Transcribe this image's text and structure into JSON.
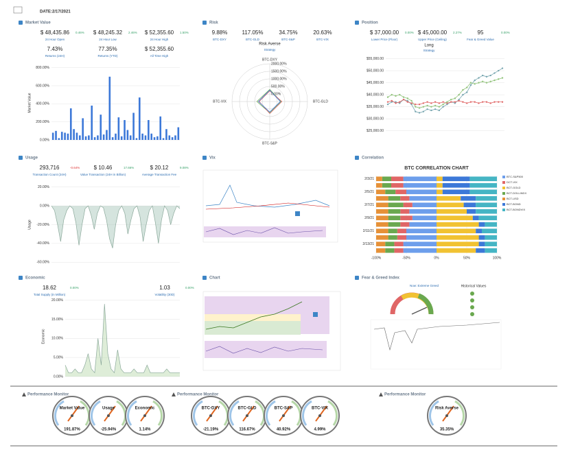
{
  "header": {
    "date_label": "DATE:",
    "date": "2/17/2021"
  },
  "panels": {
    "market_value": {
      "title": "Market Value",
      "kpis": [
        {
          "value": "$ 48,435.86",
          "change": "0.46%",
          "label": "24 Hour Open"
        },
        {
          "value": "$ 48,245.32",
          "change": "2.46%",
          "label": "24 Hour Low"
        },
        {
          "value": "$ 52,355.60",
          "change": "1.50%",
          "label": "24 Hour High"
        },
        {
          "value": "7.43%",
          "label": "Returns (24H)"
        },
        {
          "value": "77.35%",
          "label": "Returns (YTD)"
        },
        {
          "value": "$ 52,355.60",
          "label": "All Time High"
        }
      ],
      "chart": {
        "type": "bar",
        "y_label": "Market Value",
        "color": "#3c78d8",
        "ylim": [
          0,
          820
        ],
        "yticks": [
          {
            "value": 0,
            "label": "0.00%"
          },
          {
            "value": 200,
            "label": "200.00%"
          },
          {
            "value": 400,
            "label": "400.00%"
          },
          {
            "value": 600,
            "label": "600.00%"
          },
          {
            "value": 800,
            "label": "800.00%"
          }
        ],
        "values": [
          80,
          100,
          20,
          90,
          80,
          70,
          350,
          120,
          80,
          50,
          240,
          40,
          50,
          380,
          30,
          50,
          280,
          60,
          110,
          700,
          30,
          70,
          250,
          40,
          220,
          110,
          50,
          300,
          20,
          470,
          70,
          50,
          220,
          70,
          30,
          40,
          260,
          20,
          120,
          50,
          30,
          50,
          140
        ]
      }
    },
    "risk": {
      "title": "Risk",
      "kpis": [
        {
          "value": "9.88%",
          "label": "BTC-DXY"
        },
        {
          "value": "117.05%",
          "label": "BTC-GLD"
        },
        {
          "value": "34.75%",
          "label": "BTC-S&P"
        },
        {
          "value": "20.63%",
          "label": "BTC-VIX"
        }
      ],
      "strategy": {
        "value": "Risk Averse",
        "label": "Strategy"
      },
      "chart": {
        "type": "radar",
        "axes": [
          "BTC-DXY",
          "BTC-GLD",
          "BTC-S&P",
          "BTC-VIX"
        ],
        "rlim": [
          -500,
          2000
        ],
        "rticks": [
          {
            "value": 0,
            "label": "0.00%"
          },
          {
            "value": 500,
            "label": "500.00%"
          },
          {
            "value": 1000,
            "label": "1000.00%"
          },
          {
            "value": 1500,
            "label": "1500.00%"
          },
          {
            "value": 2000,
            "label": "2000.00%"
          }
        ],
        "series": [
          {
            "color": "#6aa84f",
            "values": [
              300,
              250,
              250,
              350
            ]
          },
          {
            "color": "#e06666",
            "values": [
              200,
              300,
              300,
              200
            ]
          },
          {
            "color": "#3c78d8",
            "values": [
              250,
              200,
              200,
              250
            ]
          }
        ]
      }
    },
    "position": {
      "title": "Position",
      "kpis": [
        {
          "value": "$ 37,000.00",
          "change": "0.00%",
          "label": "Lower Price (Floor)"
        },
        {
          "value": "$ 45,000.00",
          "change": "2.27%",
          "label": "Upper Price (Ceiling)"
        },
        {
          "value": "95",
          "change": "0.00%",
          "label": "Fear & Greed Value"
        }
      ],
      "strategy": {
        "value": "Long",
        "label": "Strategy"
      },
      "chart": {
        "type": "line",
        "ylim": [
          23500,
          56000
        ],
        "yticks": [
          {
            "value": 25000,
            "label": "$25,000.00"
          },
          {
            "value": 30000,
            "label": "$30,000.00"
          },
          {
            "value": 35000,
            "label": "$35,000.00"
          },
          {
            "value": 40000,
            "label": "$40,000.00"
          },
          {
            "value": 45000,
            "label": "$45,000.00"
          },
          {
            "value": 50000,
            "label": "$50,000.00"
          },
          {
            "value": 55000,
            "label": "$55,000.00"
          }
        ],
        "series": [
          {
            "color": "#76a5af",
            "values": [
              36000,
              37000,
              37000,
              36500,
              38000,
              37500,
              36000,
              33000,
              32500,
              33000,
              34000,
              33500,
              34000,
              33500,
              35000,
              36000,
              37000,
              36500,
              38000,
              40000,
              41000,
              44000,
              46000,
              47000,
              48000,
              47500,
              48000,
              49000,
              50000,
              51000
            ]
          },
          {
            "color": "#e06666",
            "values": [
              37000,
              37500,
              36500,
              37000,
              38000,
              37000,
              36500,
              36000,
              36000,
              36500,
              37000,
              36500,
              37000,
              36500,
              37000,
              36500,
              37000,
              37000,
              37500,
              37000,
              36500,
              37000,
              37000,
              36500,
              37000,
              37000,
              36500,
              37000,
              37000,
              37000
            ]
          },
          {
            "color": "#93c47d",
            "values": [
              39000,
              40000,
              39500,
              40000,
              39000,
              38500,
              37500,
              35000,
              34500,
              35000,
              35500,
              35000,
              35500,
              35000,
              36000,
              37000,
              38000,
              38500,
              40000,
              42000,
              43000,
              45000,
              44500,
              45000,
              45500,
              45000,
              45500,
              46000,
              46500,
              47000
            ]
          }
        ]
      }
    },
    "usage": {
      "title": "Usage",
      "kpis": [
        {
          "value": "293,716",
          "change": "-0.64%",
          "label": "Transaction Count (24H)"
        },
        {
          "value": "$ 10.46",
          "change": "17.66%",
          "label": "Value Transaction (24H in Billion)"
        },
        {
          "value": "$ 20.12",
          "change": "9.08%",
          "label": "Average Transaction Fee"
        }
      ],
      "chart": {
        "type": "area",
        "y_label": "Usage",
        "color": "#a2c4b5",
        "ylim": [
          -62,
          22
        ],
        "yticks": [
          {
            "value": 20,
            "label": "20.00%"
          },
          {
            "value": 0,
            "label": "0.00%"
          },
          {
            "value": -20,
            "label": "-20.00%"
          },
          {
            "value": -40,
            "label": "-40.00%"
          },
          {
            "value": -60,
            "label": "-60.00%"
          }
        ],
        "values": [
          0,
          -5,
          -20,
          -38,
          -15,
          -5,
          0,
          -3,
          -18,
          -42,
          -20,
          -3,
          0,
          -10,
          -25,
          -8,
          0,
          -2,
          -15,
          -35,
          -45,
          -20,
          -5,
          0,
          -8,
          -30,
          -15,
          -3,
          0,
          -12,
          -38,
          -20,
          -5,
          0,
          -18,
          -40,
          -15,
          0,
          -5,
          -20,
          -8,
          0,
          -3
        ]
      }
    },
    "vix": {
      "title": "Vix"
    },
    "correlation": {
      "title": "Correlation",
      "chart": {
        "type": "stacked_barh",
        "title": "BTC CORRELATION CHART",
        "xlim": [
          -100,
          100
        ],
        "xticks": [
          {
            "value": -100,
            "label": "-100%"
          },
          {
            "value": -50,
            "label": "-50%"
          },
          {
            "value": 0,
            "label": "0%"
          },
          {
            "value": 50,
            "label": "50%"
          },
          {
            "value": 100,
            "label": "100%"
          }
        ],
        "categories": [
          "2/3/21",
          null,
          "2/5/21",
          null,
          "2/7/21",
          null,
          "2/9/21",
          null,
          "2/11/21",
          null,
          "2/13/21",
          null
        ],
        "series": [
          {
            "name": "BTC-S&P500",
            "color": "#6d9eeb",
            "values": [
              -55,
              -55,
              -50,
              -45,
              -40,
              -45,
              -40,
              -45,
              -50,
              -50,
              -55,
              -55
            ]
          },
          {
            "name": "DCT-VIX",
            "color": "#e06666",
            "values": [
              -20,
              -20,
              -18,
              -15,
              -15,
              -15,
              -20,
              -15,
              -15,
              -15,
              -15,
              -15
            ]
          },
          {
            "name": "BCT-GOLD",
            "color": "#f1c232",
            "values": [
              10,
              10,
              10,
              40,
              45,
              50,
              60,
              70,
              65,
              70,
              70,
              65
            ]
          },
          {
            "name": "BCT-DOLLINDX",
            "color": "#6aa84f",
            "values": [
              -15,
              -15,
              -17,
              -20,
              -25,
              -20,
              -20,
              -20,
              -15,
              -15,
              -15,
              -15
            ]
          },
          {
            "name": "BCT-USD",
            "color": "#e69138",
            "values": [
              -10,
              -10,
              -15,
              -20,
              -20,
              -20,
              -20,
              -20,
              -20,
              -20,
              -15,
              -15
            ]
          },
          {
            "name": "BCT-BOND",
            "color": "#3c78d8",
            "values": [
              45,
              45,
              45,
              25,
              20,
              15,
              10,
              10,
              10,
              10,
              10,
              15
            ]
          },
          {
            "name": "BCT-BONDVIX",
            "color": "#45b5c4",
            "values": [
              45,
              45,
              45,
              35,
              35,
              35,
              30,
              20,
              25,
              20,
              20,
              20
            ]
          }
        ]
      }
    },
    "economic": {
      "title": "Economic",
      "kpis": [
        {
          "value": "18.62",
          "change": "0.00%",
          "label": "Total Supply (in Million)"
        },
        {
          "value": "1.03",
          "change": "0.00%",
          "label": "Volatility (30D)"
        }
      ],
      "chart": {
        "type": "area",
        "y_label": "Economic",
        "color": "#b6d7a8",
        "ylim": [
          0,
          21
        ],
        "yticks": [
          {
            "value": 0,
            "label": "0.00%"
          },
          {
            "value": 5,
            "label": "5.00%"
          },
          {
            "value": 10,
            "label": "10.00%"
          },
          {
            "value": 15,
            "label": "15.00%"
          },
          {
            "value": 20,
            "label": "20.00%"
          }
        ],
        "values": [
          3,
          1,
          1,
          2,
          1,
          1,
          3,
          6,
          2,
          1,
          10,
          3,
          19,
          6,
          2,
          1,
          7,
          2,
          1,
          1,
          1,
          2,
          1,
          1,
          1,
          3,
          1,
          1,
          1,
          1,
          1,
          2,
          1,
          1,
          1,
          1
        ]
      }
    },
    "chart": {
      "title": "Chart"
    },
    "fear_greed": {
      "title": "Fear & Greed Index",
      "now": "Now: Extreme Greed",
      "historical_title": "Historical Values"
    }
  },
  "performance": [
    {
      "title": "Performance Monitor",
      "gauges": [
        {
          "label": "Market Value",
          "value": "191.87%"
        },
        {
          "label": "Usage",
          "value": "-25.94%"
        },
        {
          "label": "Economic",
          "value": "1.14%"
        }
      ]
    },
    {
      "title": "Performance Monitor",
      "gauges": [
        {
          "label": "BTC-DXY",
          "value": "-21.19%"
        },
        {
          "label": "BTC-GLD",
          "value": "116.67%"
        },
        {
          "label": "BTC-S&P",
          "value": "40.92%"
        },
        {
          "label": "BTC-VIX",
          "value": "4.99%"
        }
      ]
    },
    {
      "title": "Performance Monitor",
      "gauges": [
        {
          "label": "Risk Averse",
          "value": "35.35%"
        }
      ]
    }
  ]
}
